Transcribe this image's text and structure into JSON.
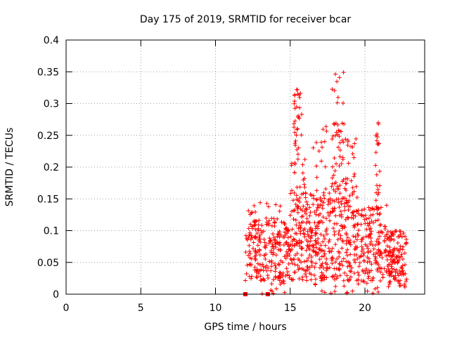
{
  "chart_data": {
    "type": "scatter",
    "title": "Day 175 of 2019, SRMTID for receiver bcar",
    "xlabel": "GPS time / hours",
    "ylabel": "SRMTID / TECUs",
    "xlim": [
      0,
      24
    ],
    "ylim": [
      0,
      0.4
    ],
    "grid": true,
    "xticks": [
      0,
      5,
      10,
      15,
      20
    ],
    "xtick_labels": [
      "0",
      "5",
      "10",
      "15",
      "20"
    ],
    "yticks": [
      0,
      0.05,
      0.1,
      0.15,
      0.2,
      0.25,
      0.3,
      0.35,
      0.4
    ],
    "ytick_labels": [
      "0",
      "0.05",
      "0.1",
      "0.15",
      "0.2",
      "0.25",
      "0.3",
      "0.35",
      "0.4"
    ],
    "marker": "plus",
    "series_color": "#ff0000",
    "square_markers": [
      {
        "x": 12.0,
        "y": 0.0
      },
      {
        "x": 13.5,
        "y": 0.0
      }
    ],
    "point_groups": [
      {
        "x_range": [
          12.0,
          15.0
        ],
        "y_range": [
          0.02,
          0.12
        ],
        "count": 230
      },
      {
        "x_range": [
          12.0,
          15.0
        ],
        "y_range": [
          0.12,
          0.145
        ],
        "count": 12
      },
      {
        "x_range": [
          13.0,
          15.0
        ],
        "y_range": [
          0.0,
          0.03
        ],
        "count": 12
      },
      {
        "x_range": [
          15.0,
          16.0
        ],
        "y_range": [
          0.02,
          0.15
        ],
        "count": 90
      },
      {
        "x_range": [
          15.0,
          16.0
        ],
        "y_range": [
          0.15,
          0.23
        ],
        "count": 25
      },
      {
        "x_range": [
          15.2,
          15.8
        ],
        "y_range": [
          0.23,
          0.325
        ],
        "count": 30
      },
      {
        "x_range": [
          16.0,
          17.7
        ],
        "y_range": [
          0.02,
          0.16
        ],
        "count": 170
      },
      {
        "x_range": [
          16.5,
          17.5
        ],
        "y_range": [
          0.16,
          0.28
        ],
        "count": 15
      },
      {
        "x_range": [
          17.7,
          19.5
        ],
        "y_range": [
          0.02,
          0.18
        ],
        "count": 170
      },
      {
        "x_range": [
          17.8,
          18.6
        ],
        "y_range": [
          0.18,
          0.35
        ],
        "count": 40
      },
      {
        "x_range": [
          18.5,
          19.5
        ],
        "y_range": [
          0.18,
          0.25
        ],
        "count": 15
      },
      {
        "x_range": [
          19.5,
          21.5
        ],
        "y_range": [
          0.02,
          0.14
        ],
        "count": 160
      },
      {
        "x_range": [
          20.7,
          21.0
        ],
        "y_range": [
          0.14,
          0.27
        ],
        "count": 20
      },
      {
        "x_range": [
          21.5,
          22.8
        ],
        "y_range": [
          0.01,
          0.1
        ],
        "count": 130
      },
      {
        "x_range": [
          16.0,
          21.0
        ],
        "y_range": [
          0.0,
          0.03
        ],
        "count": 25
      }
    ]
  }
}
